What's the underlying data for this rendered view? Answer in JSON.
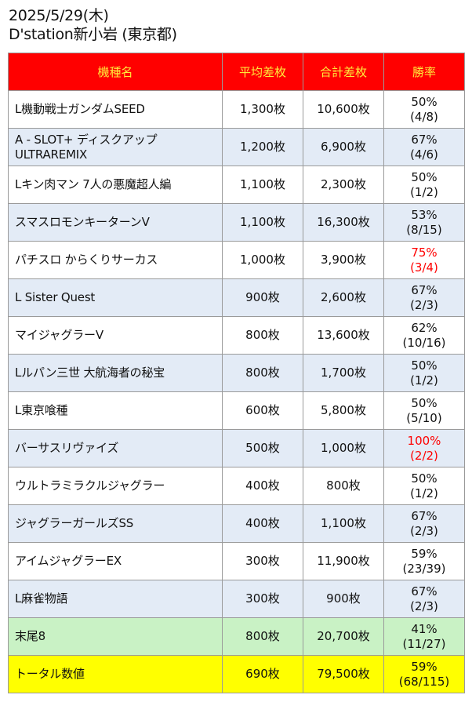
{
  "header": {
    "date": "2025/5/29(木)",
    "store": "D'station新小岩 (東京都)"
  },
  "table": {
    "columns": [
      "機種名",
      "平均差枚",
      "合計差枚",
      "勝率"
    ],
    "rows": [
      {
        "name": "L機動戦士ガンダムSEED",
        "avg": "1,300枚",
        "total": "10,600枚",
        "rate": "50%",
        "ratio": "(4/8)"
      },
      {
        "name": "A - SLOT+ ディスクアップ ULTRAREMIX",
        "avg": "1,200枚",
        "total": "6,900枚",
        "rate": "67%",
        "ratio": "(4/6)"
      },
      {
        "name": "Lキン肉マン 7人の悪魔超人編",
        "avg": "1,100枚",
        "total": "2,300枚",
        "rate": "50%",
        "ratio": "(1/2)"
      },
      {
        "name": "スマスロモンキーターンV",
        "avg": "1,100枚",
        "total": "16,300枚",
        "rate": "53%",
        "ratio": "(8/15)"
      },
      {
        "name": "パチスロ からくりサーカス",
        "avg": "1,000枚",
        "total": "3,900枚",
        "rate": "75%",
        "ratio": "(3/4)"
      },
      {
        "name": "L Sister Quest",
        "avg": "900枚",
        "total": "2,600枚",
        "rate": "67%",
        "ratio": "(2/3)"
      },
      {
        "name": "マイジャグラーV",
        "avg": "800枚",
        "total": "13,600枚",
        "rate": "62%",
        "ratio": "(10/16)"
      },
      {
        "name": "Lルパン三世 大航海者の秘宝",
        "avg": "800枚",
        "total": "1,700枚",
        "rate": "50%",
        "ratio": "(1/2)"
      },
      {
        "name": "L東京喰種",
        "avg": "600枚",
        "total": "5,800枚",
        "rate": "50%",
        "ratio": "(5/10)"
      },
      {
        "name": "バーサスリヴァイズ",
        "avg": "500枚",
        "total": "1,000枚",
        "rate": "100%",
        "ratio": "(2/2)"
      },
      {
        "name": "ウルトラミラクルジャグラー",
        "avg": "400枚",
        "total": "800枚",
        "rate": "50%",
        "ratio": "(1/2)"
      },
      {
        "name": "ジャグラーガールズSS",
        "avg": "400枚",
        "total": "1,100枚",
        "rate": "67%",
        "ratio": "(2/3)"
      },
      {
        "name": "アイムジャグラーEX",
        "avg": "300枚",
        "total": "11,900枚",
        "rate": "59%",
        "ratio": "(23/39)"
      },
      {
        "name": "L麻雀物語",
        "avg": "300枚",
        "total": "900枚",
        "rate": "67%",
        "ratio": "(2/3)"
      },
      {
        "name": "末尾8",
        "avg": "800枚",
        "total": "20,700枚",
        "rate": "41%",
        "ratio": "(11/27)"
      },
      {
        "name": "トータル数値",
        "avg": "690枚",
        "total": "79,500枚",
        "rate": "59%",
        "ratio": "(68/115)"
      }
    ]
  },
  "colors": {
    "header_bg": "#ff0000",
    "header_text": "#ffeb3b",
    "alt_row": "#e3ebf6",
    "digit_row": "#c9f2c5",
    "total_row": "#ffff00",
    "highlight_text": "#ff0000"
  }
}
